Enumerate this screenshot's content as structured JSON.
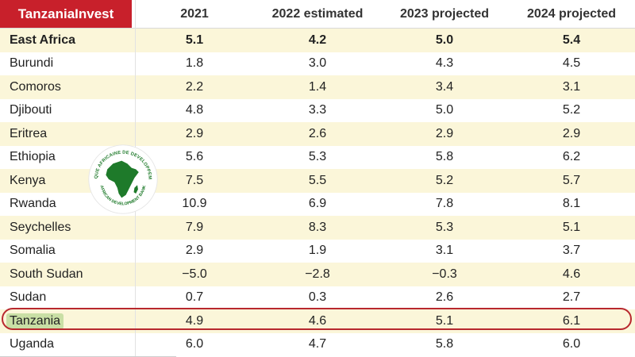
{
  "brand": {
    "name": "TanzaniaInvest",
    "color": "#c8202b"
  },
  "logo": {
    "top_text": "BANQUE AFRICAINE DE DEVELOPPEMENT",
    "bottom_text": "AFRICAN DEVELOPMENT BANK",
    "icon": "africa-continent-icon",
    "color": "#1e7a2a"
  },
  "chart_data": {
    "type": "table",
    "columns": [
      "2021",
      "2022 estimated",
      "2023 projected",
      "2024 projected"
    ],
    "rows": [
      {
        "country": "East Africa",
        "values": [
          "5.1",
          "4.2",
          "5.0",
          "5.4"
        ],
        "bold": true,
        "shaded": true
      },
      {
        "country": "Burundi",
        "values": [
          "1.8",
          "3.0",
          "4.3",
          "4.5"
        ],
        "shaded": false
      },
      {
        "country": "Comoros",
        "values": [
          "2.2",
          "1.4",
          "3.4",
          "3.1"
        ],
        "shaded": true
      },
      {
        "country": "Djibouti",
        "values": [
          "4.8",
          "3.3",
          "5.0",
          "5.2"
        ],
        "shaded": false
      },
      {
        "country": "Eritrea",
        "values": [
          "2.9",
          "2.6",
          "2.9",
          "2.9"
        ],
        "shaded": true
      },
      {
        "country": "Ethiopia",
        "values": [
          "5.6",
          "5.3",
          "5.8",
          "6.2"
        ],
        "shaded": false
      },
      {
        "country": "Kenya",
        "values": [
          "7.5",
          "5.5",
          "5.2",
          "5.7"
        ],
        "shaded": true
      },
      {
        "country": "Rwanda",
        "values": [
          "10.9",
          "6.9",
          "7.8",
          "8.1"
        ],
        "shaded": false
      },
      {
        "country": "Seychelles",
        "values": [
          "7.9",
          "8.3",
          "5.3",
          "5.1"
        ],
        "shaded": true
      },
      {
        "country": "Somalia",
        "values": [
          "2.9",
          "1.9",
          "3.1",
          "3.7"
        ],
        "shaded": false
      },
      {
        "country": "South Sudan",
        "values": [
          "−5.0",
          "−2.8",
          "−0.3",
          "4.6"
        ],
        "shaded": true
      },
      {
        "country": "Sudan",
        "values": [
          "0.7",
          "0.3",
          "2.6",
          "2.7"
        ],
        "shaded": false
      },
      {
        "country": "Tanzania",
        "values": [
          "4.9",
          "4.6",
          "5.1",
          "6.1"
        ],
        "shaded": true,
        "highlighted": true
      },
      {
        "country": "Uganda",
        "values": [
          "6.0",
          "4.7",
          "5.8",
          "6.0"
        ],
        "shaded": false
      }
    ],
    "colors": {
      "row_shade": "#fbf6d9",
      "highlight_ring": "#b8282e",
      "country_highlight": "#c9dfa5"
    }
  }
}
